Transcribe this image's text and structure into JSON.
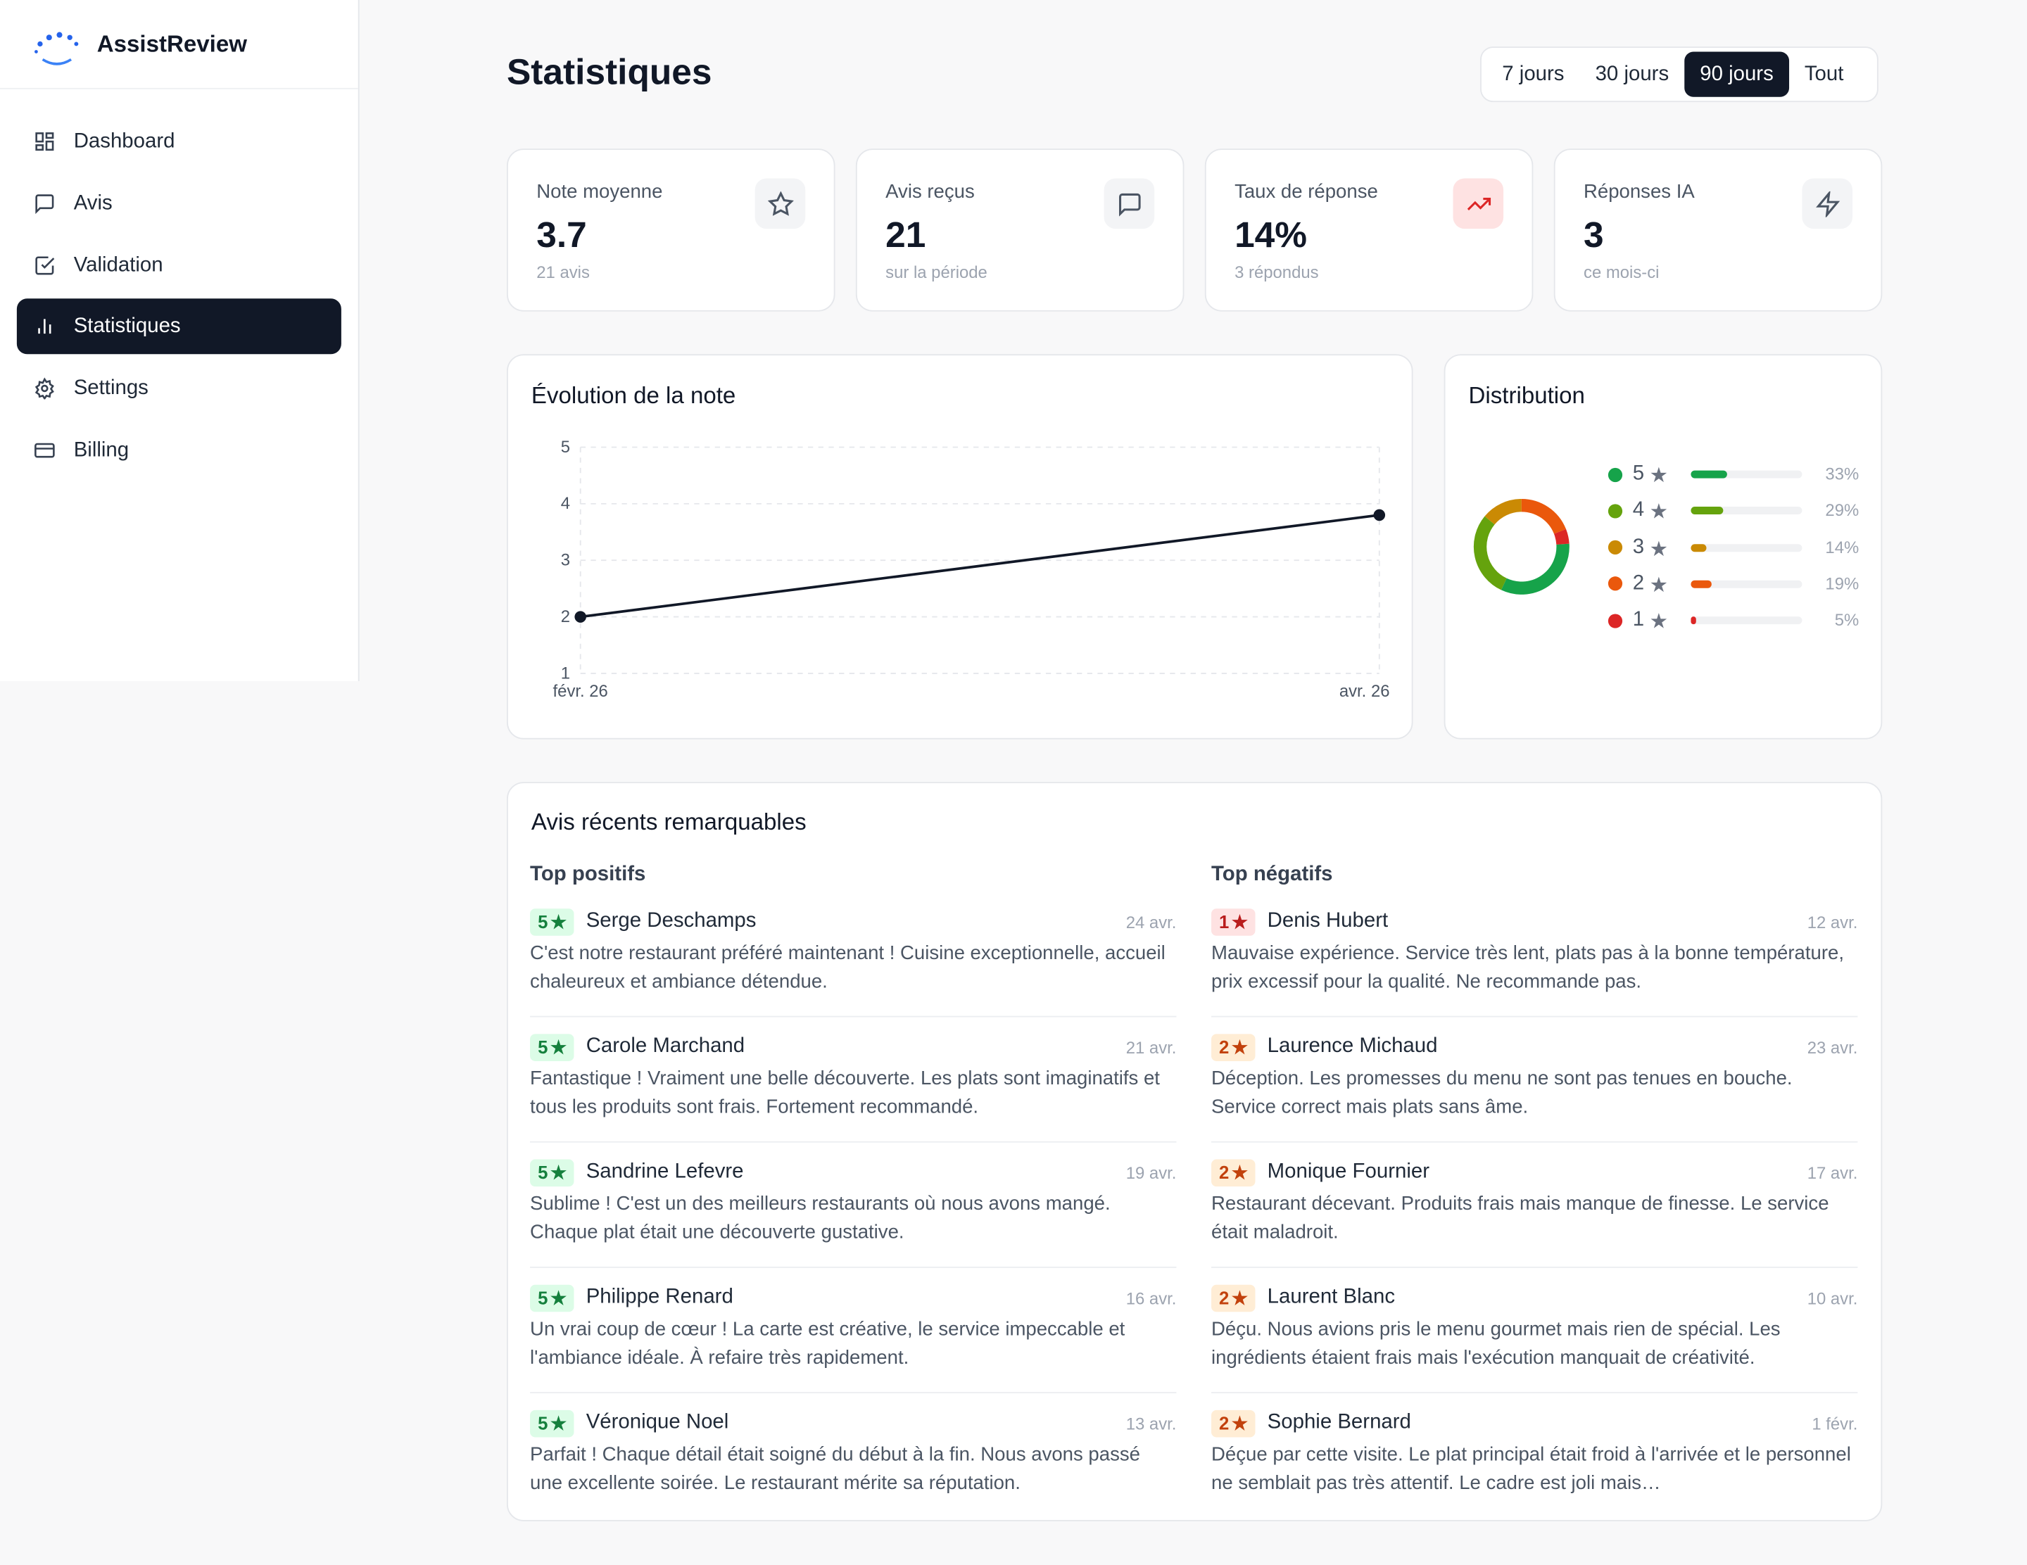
{
  "sidebar": {
    "brand": "AssistReview",
    "nav": [
      "Dashboard",
      "Avis",
      "Validation",
      "Statistiques",
      "Settings",
      "Billing"
    ],
    "active": 3
  },
  "header": {
    "title": "Statistiques",
    "periods": [
      "7 jours",
      "30 jours",
      "90 jours",
      "Tout"
    ],
    "active_period": 2
  },
  "kpis": [
    {
      "label": "Note moyenne",
      "value": "3.7",
      "note": "21 avis"
    },
    {
      "label": "Avis reçus",
      "value": "21",
      "note": "sur la période"
    },
    {
      "label": "Taux de réponse",
      "value": "14%",
      "note": "3 répondus"
    },
    {
      "label": "Réponses IA",
      "value": "3",
      "note": "ce mois-ci"
    }
  ],
  "chart_data": [
    {
      "type": "line",
      "title": "Évolution de la note",
      "x": [
        "févr. 26",
        "avr. 26"
      ],
      "values": [
        2,
        3.8
      ],
      "ylim": [
        1,
        5
      ],
      "yticks": [
        1,
        2,
        3,
        4,
        5
      ],
      "grid": true,
      "color": "#111827"
    },
    {
      "type": "donut",
      "title": "Distribution",
      "categories": [
        "5",
        "4",
        "3",
        "2",
        "1"
      ],
      "values": [
        33,
        29,
        14,
        19,
        5
      ],
      "value_labels": [
        "33%",
        "29%",
        "14%",
        "19%",
        "5%"
      ],
      "colors": [
        "#16a34a",
        "#65a30d",
        "#ca8a04",
        "#ea580c",
        "#dc2626"
      ]
    }
  ],
  "recent": {
    "title": "Avis récents remarquables",
    "positive": {
      "title": "Top positifs",
      "items": [
        {
          "rating": 5,
          "name": "Serge Deschamps",
          "date": "24 avr.",
          "text": "C'est notre restaurant préféré maintenant ! Cuisine exceptionnelle, accueil chaleureux et ambiance détendue."
        },
        {
          "rating": 5,
          "name": "Carole Marchand",
          "date": "21 avr.",
          "text": "Fantastique ! Vraiment une belle découverte. Les plats sont imaginatifs et tous les produits sont frais. Fortement recommandé."
        },
        {
          "rating": 5,
          "name": "Sandrine Lefevre",
          "date": "19 avr.",
          "text": "Sublime ! C'est un des meilleurs restaurants où nous avons mangé. Chaque plat était une découverte gustative."
        },
        {
          "rating": 5,
          "name": "Philippe Renard",
          "date": "16 avr.",
          "text": "Un vrai coup de cœur ! La carte est créative, le service impeccable et l'ambiance idéale. À refaire très rapidement."
        },
        {
          "rating": 5,
          "name": "Véronique Noel",
          "date": "13 avr.",
          "text": "Parfait ! Chaque détail était soigné du début à la fin. Nous avons passé une excellente soirée. Le restaurant mérite sa réputation."
        }
      ]
    },
    "negative": {
      "title": "Top négatifs",
      "items": [
        {
          "rating": 1,
          "name": "Denis Hubert",
          "date": "12 avr.",
          "text": "Mauvaise expérience. Service très lent, plats pas à la bonne température, prix excessif pour la qualité. Ne recommande pas."
        },
        {
          "rating": 2,
          "name": "Laurence Michaud",
          "date": "23 avr.",
          "text": "Déception. Les promesses du menu ne sont pas tenues en bouche. Service correct mais plats sans âme."
        },
        {
          "rating": 2,
          "name": "Monique Fournier",
          "date": "17 avr.",
          "text": "Restaurant décevant. Produits frais mais manque de finesse. Le service était maladroit."
        },
        {
          "rating": 2,
          "name": "Laurent Blanc",
          "date": "10 avr.",
          "text": "Déçu. Nous avions pris le menu gourmet mais rien de spécial. Les ingrédients étaient frais mais l'exécution manquait de créativité."
        },
        {
          "rating": 2,
          "name": "Sophie Bernard",
          "date": "1 févr.",
          "text": "Déçue par cette visite. Le plat principal était froid à l'arrivée et le personnel ne semblait pas très attentif. Le cadre est joli mais…"
        }
      ]
    }
  }
}
